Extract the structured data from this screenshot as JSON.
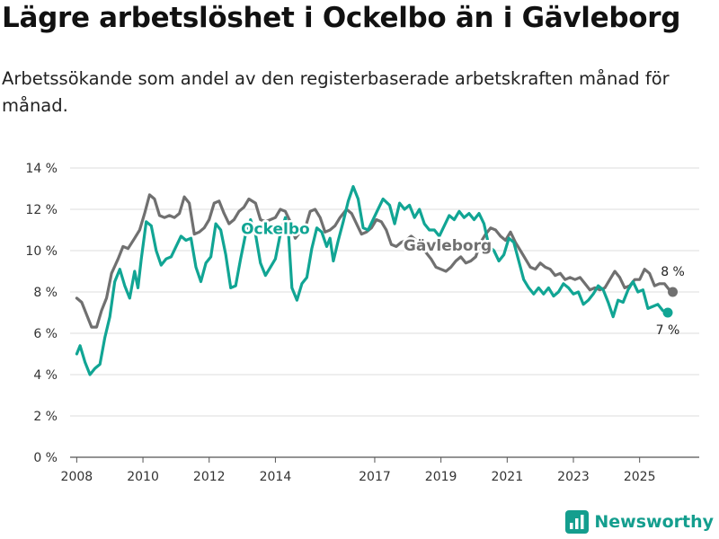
{
  "title": "Lägre arbetslöshet i Ockelbo än i Gävleborg",
  "subtitle": "Arbetssökande som andel av den registerbaserade arbetskraften månad för månad.",
  "brand": {
    "name": "Newsworthy",
    "icon": "newsworthy-logo-icon",
    "color": "#149e8e"
  },
  "chart_data": {
    "type": "line",
    "ylim": [
      0,
      14
    ],
    "xlim": [
      2007.8,
      2026.8
    ],
    "yticks": [
      0,
      2,
      4,
      6,
      8,
      10,
      12,
      14
    ],
    "ytick_labels": [
      "0 %",
      "2 %",
      "4 %",
      "6 %",
      "8 %",
      "10 %",
      "12 %",
      "14 %"
    ],
    "xticks": [
      2008,
      2010,
      2012,
      2014,
      2017,
      2019,
      2021,
      2023,
      2025
    ],
    "xtick_labels": [
      "2008",
      "2010",
      "2012",
      "2014",
      "2017",
      "2019",
      "2021",
      "2023",
      "2025"
    ],
    "grid": "horizontal",
    "series": [
      {
        "name": "Gävleborg",
        "label": "Gävleborg",
        "color": "#707070",
        "end_label": "8 %",
        "points": [
          [
            2008.0,
            7.7
          ],
          [
            2008.15,
            7.5
          ],
          [
            2008.3,
            6.9
          ],
          [
            2008.45,
            6.3
          ],
          [
            2008.6,
            6.3
          ],
          [
            2008.75,
            7.1
          ],
          [
            2008.9,
            7.7
          ],
          [
            2009.05,
            8.9
          ],
          [
            2009.25,
            9.6
          ],
          [
            2009.4,
            10.2
          ],
          [
            2009.55,
            10.1
          ],
          [
            2009.75,
            10.6
          ],
          [
            2009.9,
            11.0
          ],
          [
            2010.05,
            11.8
          ],
          [
            2010.2,
            12.7
          ],
          [
            2010.35,
            12.5
          ],
          [
            2010.5,
            11.7
          ],
          [
            2010.65,
            11.6
          ],
          [
            2010.8,
            11.7
          ],
          [
            2010.95,
            11.6
          ],
          [
            2011.1,
            11.8
          ],
          [
            2011.25,
            12.6
          ],
          [
            2011.4,
            12.3
          ],
          [
            2011.55,
            10.8
          ],
          [
            2011.7,
            10.9
          ],
          [
            2011.85,
            11.1
          ],
          [
            2012.0,
            11.5
          ],
          [
            2012.15,
            12.3
          ],
          [
            2012.3,
            12.4
          ],
          [
            2012.45,
            11.8
          ],
          [
            2012.6,
            11.3
          ],
          [
            2012.75,
            11.5
          ],
          [
            2012.9,
            11.9
          ],
          [
            2013.05,
            12.1
          ],
          [
            2013.2,
            12.5
          ],
          [
            2013.4,
            12.3
          ],
          [
            2013.55,
            11.5
          ],
          [
            2013.7,
            11.4
          ],
          [
            2013.85,
            11.5
          ],
          [
            2014.0,
            11.6
          ],
          [
            2014.15,
            12.0
          ],
          [
            2014.3,
            11.9
          ],
          [
            2014.45,
            11.4
          ],
          [
            2014.6,
            10.6
          ],
          [
            2014.75,
            10.9
          ],
          [
            2014.9,
            11.1
          ],
          [
            2015.05,
            11.9
          ],
          [
            2015.2,
            12.0
          ],
          [
            2015.35,
            11.6
          ],
          [
            2015.5,
            10.9
          ],
          [
            2015.65,
            11.0
          ],
          [
            2015.8,
            11.2
          ],
          [
            2015.95,
            11.6
          ],
          [
            2016.15,
            12.0
          ],
          [
            2016.3,
            11.8
          ],
          [
            2016.45,
            11.3
          ],
          [
            2016.6,
            10.8
          ],
          [
            2016.75,
            10.9
          ],
          [
            2016.9,
            11.1
          ],
          [
            2017.05,
            11.5
          ],
          [
            2017.2,
            11.4
          ],
          [
            2017.35,
            11.0
          ],
          [
            2017.5,
            10.3
          ],
          [
            2017.65,
            10.2
          ],
          [
            2017.8,
            10.4
          ],
          [
            2017.95,
            10.5
          ],
          [
            2018.1,
            10.7
          ],
          [
            2018.25,
            10.5
          ],
          [
            2018.4,
            10.2
          ],
          [
            2018.55,
            9.9
          ],
          [
            2018.7,
            9.6
          ],
          [
            2018.85,
            9.2
          ],
          [
            2019.0,
            9.1
          ],
          [
            2019.15,
            9.0
          ],
          [
            2019.3,
            9.2
          ],
          [
            2019.45,
            9.5
          ],
          [
            2019.6,
            9.7
          ],
          [
            2019.75,
            9.4
          ],
          [
            2019.9,
            9.5
          ],
          [
            2020.05,
            9.7
          ],
          [
            2020.2,
            10.4
          ],
          [
            2020.35,
            10.8
          ],
          [
            2020.5,
            11.1
          ],
          [
            2020.65,
            11.0
          ],
          [
            2020.8,
            10.7
          ],
          [
            2020.95,
            10.5
          ],
          [
            2021.1,
            10.9
          ],
          [
            2021.25,
            10.4
          ],
          [
            2021.4,
            10.0
          ],
          [
            2021.55,
            9.6
          ],
          [
            2021.7,
            9.2
          ],
          [
            2021.85,
            9.1
          ],
          [
            2022.0,
            9.4
          ],
          [
            2022.15,
            9.2
          ],
          [
            2022.3,
            9.1
          ],
          [
            2022.45,
            8.8
          ],
          [
            2022.6,
            8.9
          ],
          [
            2022.75,
            8.6
          ],
          [
            2022.9,
            8.7
          ],
          [
            2023.05,
            8.6
          ],
          [
            2023.2,
            8.7
          ],
          [
            2023.35,
            8.4
          ],
          [
            2023.5,
            8.1
          ],
          [
            2023.65,
            8.2
          ],
          [
            2023.8,
            8.1
          ],
          [
            2023.95,
            8.2
          ],
          [
            2024.1,
            8.6
          ],
          [
            2024.25,
            9.0
          ],
          [
            2024.4,
            8.7
          ],
          [
            2024.55,
            8.2
          ],
          [
            2024.7,
            8.3
          ],
          [
            2024.85,
            8.6
          ],
          [
            2025.0,
            8.6
          ],
          [
            2025.15,
            9.1
          ],
          [
            2025.3,
            8.9
          ],
          [
            2025.45,
            8.3
          ],
          [
            2025.6,
            8.4
          ],
          [
            2025.75,
            8.4
          ],
          [
            2025.9,
            8.1
          ],
          [
            2026.0,
            8.0
          ]
        ]
      },
      {
        "name": "Ockelbo",
        "label": "Ockelbo",
        "color": "#11a594",
        "end_label": "7 %",
        "points": [
          [
            2008.0,
            5.0
          ],
          [
            2008.1,
            5.4
          ],
          [
            2008.25,
            4.6
          ],
          [
            2008.4,
            4.0
          ],
          [
            2008.55,
            4.3
          ],
          [
            2008.7,
            4.5
          ],
          [
            2008.85,
            5.8
          ],
          [
            2009.0,
            6.8
          ],
          [
            2009.15,
            8.5
          ],
          [
            2009.3,
            9.1
          ],
          [
            2009.45,
            8.3
          ],
          [
            2009.6,
            7.7
          ],
          [
            2009.75,
            9.0
          ],
          [
            2009.85,
            8.2
          ],
          [
            2009.95,
            9.6
          ],
          [
            2010.1,
            11.4
          ],
          [
            2010.25,
            11.2
          ],
          [
            2010.4,
            10.0
          ],
          [
            2010.55,
            9.3
          ],
          [
            2010.7,
            9.6
          ],
          [
            2010.85,
            9.7
          ],
          [
            2011.0,
            10.2
          ],
          [
            2011.15,
            10.7
          ],
          [
            2011.3,
            10.5
          ],
          [
            2011.45,
            10.6
          ],
          [
            2011.6,
            9.2
          ],
          [
            2011.75,
            8.5
          ],
          [
            2011.9,
            9.4
          ],
          [
            2012.05,
            9.7
          ],
          [
            2012.2,
            11.3
          ],
          [
            2012.35,
            11.0
          ],
          [
            2012.5,
            9.8
          ],
          [
            2012.65,
            8.2
          ],
          [
            2012.8,
            8.3
          ],
          [
            2012.95,
            9.6
          ],
          [
            2013.1,
            10.8
          ],
          [
            2013.25,
            11.5
          ],
          [
            2013.4,
            10.8
          ],
          [
            2013.55,
            9.4
          ],
          [
            2013.7,
            8.8
          ],
          [
            2013.85,
            9.2
          ],
          [
            2014.0,
            9.6
          ],
          [
            2014.15,
            10.8
          ],
          [
            2014.3,
            11.6
          ],
          [
            2014.4,
            10.7
          ],
          [
            2014.5,
            8.2
          ],
          [
            2014.65,
            7.6
          ],
          [
            2014.8,
            8.4
          ],
          [
            2014.95,
            8.7
          ],
          [
            2015.1,
            10.1
          ],
          [
            2015.25,
            11.1
          ],
          [
            2015.4,
            10.9
          ],
          [
            2015.55,
            10.2
          ],
          [
            2015.65,
            10.6
          ],
          [
            2015.75,
            9.5
          ],
          [
            2015.9,
            10.5
          ],
          [
            2016.05,
            11.4
          ],
          [
            2016.2,
            12.4
          ],
          [
            2016.35,
            13.1
          ],
          [
            2016.5,
            12.5
          ],
          [
            2016.65,
            11.1
          ],
          [
            2016.8,
            11.0
          ],
          [
            2016.95,
            11.5
          ],
          [
            2017.1,
            12.0
          ],
          [
            2017.25,
            12.5
          ],
          [
            2017.45,
            12.2
          ],
          [
            2017.6,
            11.3
          ],
          [
            2017.75,
            12.3
          ],
          [
            2017.9,
            12.0
          ],
          [
            2018.05,
            12.2
          ],
          [
            2018.2,
            11.6
          ],
          [
            2018.35,
            12.0
          ],
          [
            2018.5,
            11.3
          ],
          [
            2018.65,
            11.0
          ],
          [
            2018.8,
            11.0
          ],
          [
            2018.95,
            10.7
          ],
          [
            2019.1,
            11.2
          ],
          [
            2019.25,
            11.7
          ],
          [
            2019.4,
            11.5
          ],
          [
            2019.55,
            11.9
          ],
          [
            2019.7,
            11.6
          ],
          [
            2019.85,
            11.8
          ],
          [
            2020.0,
            11.5
          ],
          [
            2020.15,
            11.8
          ],
          [
            2020.3,
            11.3
          ],
          [
            2020.45,
            10.2
          ],
          [
            2020.6,
            10.0
          ],
          [
            2020.75,
            9.5
          ],
          [
            2020.9,
            9.8
          ],
          [
            2021.05,
            10.6
          ],
          [
            2021.2,
            10.4
          ],
          [
            2021.35,
            9.5
          ],
          [
            2021.5,
            8.6
          ],
          [
            2021.65,
            8.2
          ],
          [
            2021.8,
            7.9
          ],
          [
            2021.95,
            8.2
          ],
          [
            2022.1,
            7.9
          ],
          [
            2022.25,
            8.2
          ],
          [
            2022.4,
            7.8
          ],
          [
            2022.55,
            8.0
          ],
          [
            2022.7,
            8.4
          ],
          [
            2022.85,
            8.2
          ],
          [
            2023.0,
            7.9
          ],
          [
            2023.15,
            8.0
          ],
          [
            2023.3,
            7.4
          ],
          [
            2023.45,
            7.6
          ],
          [
            2023.6,
            7.9
          ],
          [
            2023.75,
            8.3
          ],
          [
            2023.9,
            8.1
          ],
          [
            2024.05,
            7.5
          ],
          [
            2024.2,
            6.8
          ],
          [
            2024.35,
            7.6
          ],
          [
            2024.5,
            7.5
          ],
          [
            2024.65,
            8.1
          ],
          [
            2024.8,
            8.5
          ],
          [
            2024.95,
            8.0
          ],
          [
            2025.1,
            8.1
          ],
          [
            2025.25,
            7.2
          ],
          [
            2025.4,
            7.3
          ],
          [
            2025.55,
            7.4
          ],
          [
            2025.7,
            7.1
          ],
          [
            2025.85,
            7.0
          ]
        ]
      }
    ]
  }
}
